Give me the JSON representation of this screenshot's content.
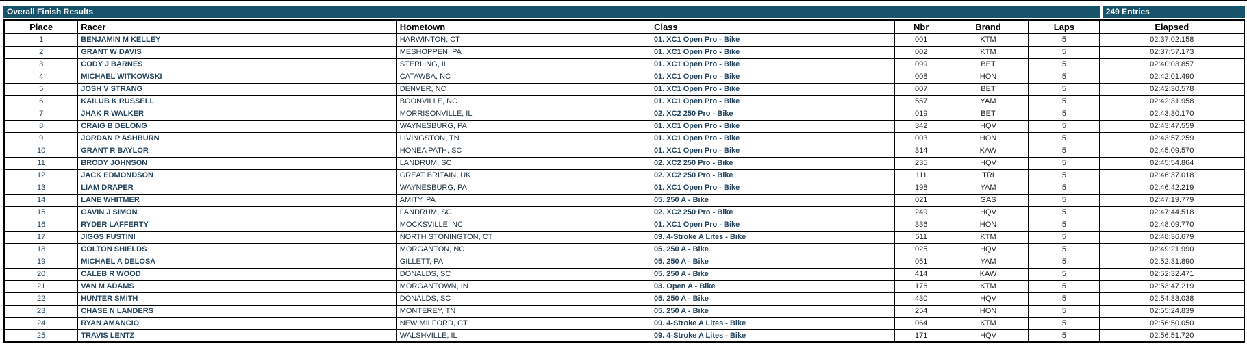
{
  "header": {
    "title": "Overall Finish Results",
    "entries": "249 Entries"
  },
  "colors": {
    "header_bg": "#17536B",
    "header_text": "#FFFFFF",
    "name_text": "#24435C",
    "body_text": "#222222",
    "border": "#000000"
  },
  "columns": [
    {
      "key": "place",
      "label": "Place"
    },
    {
      "key": "racer",
      "label": "Racer"
    },
    {
      "key": "hometown",
      "label": "Hometown"
    },
    {
      "key": "class",
      "label": "Class"
    },
    {
      "key": "nbr",
      "label": "Nbr"
    },
    {
      "key": "brand",
      "label": "Brand"
    },
    {
      "key": "laps",
      "label": "Laps"
    },
    {
      "key": "elapsed",
      "label": "Elapsed"
    }
  ],
  "rows": [
    {
      "place": "1",
      "racer": "BENJAMIN M KELLEY",
      "hometown": "HARWINTON, CT",
      "class": "01. XC1 Open Pro - Bike",
      "nbr": "001",
      "brand": "KTM",
      "laps": "5",
      "elapsed": "02:37:02.158"
    },
    {
      "place": "2",
      "racer": "GRANT W DAVIS",
      "hometown": "MESHOPPEN, PA",
      "class": "01. XC1 Open Pro - Bike",
      "nbr": "002",
      "brand": "KTM",
      "laps": "5",
      "elapsed": "02:37:57.173"
    },
    {
      "place": "3",
      "racer": "CODY J BARNES",
      "hometown": "STERLING, IL",
      "class": "01. XC1 Open Pro - Bike",
      "nbr": "099",
      "brand": "BET",
      "laps": "5",
      "elapsed": "02:40:03.857"
    },
    {
      "place": "4",
      "racer": "MICHAEL WITKOWSKI",
      "hometown": "CATAWBA, NC",
      "class": "01. XC1 Open Pro - Bike",
      "nbr": "008",
      "brand": "HON",
      "laps": "5",
      "elapsed": "02:42:01.490"
    },
    {
      "place": "5",
      "racer": "JOSH V STRANG",
      "hometown": "DENVER, NC",
      "class": "01. XC1 Open Pro - Bike",
      "nbr": "007",
      "brand": "BET",
      "laps": "5",
      "elapsed": "02:42:30.578"
    },
    {
      "place": "6",
      "racer": "KAILUB K RUSSELL",
      "hometown": "BOONVILLE, NC",
      "class": "01. XC1 Open Pro - Bike",
      "nbr": "557",
      "brand": "YAM",
      "laps": "5",
      "elapsed": "02:42:31.958"
    },
    {
      "place": "7",
      "racer": "JHAK R WALKER",
      "hometown": "MORRISONVILLE, IL",
      "class": "02. XC2 250 Pro - Bike",
      "nbr": "019",
      "brand": "BET",
      "laps": "5",
      "elapsed": "02:43:30.170"
    },
    {
      "place": "8",
      "racer": "CRAIG B DELONG",
      "hometown": "WAYNESBURG, PA",
      "class": "01. XC1 Open Pro - Bike",
      "nbr": "342",
      "brand": "HQV",
      "laps": "5",
      "elapsed": "02:43:47.559"
    },
    {
      "place": "9",
      "racer": "JORDAN P ASHBURN",
      "hometown": "LIVINGSTON, TN",
      "class": "01. XC1 Open Pro - Bike",
      "nbr": "003",
      "brand": "HON",
      "laps": "5",
      "elapsed": "02:43:57.259"
    },
    {
      "place": "10",
      "racer": "GRANT R BAYLOR",
      "hometown": "HONEA PATH, SC",
      "class": "01. XC1 Open Pro - Bike",
      "nbr": "314",
      "brand": "KAW",
      "laps": "5",
      "elapsed": "02:45:09.570"
    },
    {
      "place": "11",
      "racer": "BRODY JOHNSON",
      "hometown": "LANDRUM, SC",
      "class": "02. XC2 250 Pro - Bike",
      "nbr": "235",
      "brand": "HQV",
      "laps": "5",
      "elapsed": "02:45:54.864"
    },
    {
      "place": "12",
      "racer": "JACK EDMONDSON",
      "hometown": "GREAT BRITAIN, UK",
      "class": "02. XC2 250 Pro - Bike",
      "nbr": "111",
      "brand": "TRI",
      "laps": "5",
      "elapsed": "02:46:37.018"
    },
    {
      "place": "13",
      "racer": "LIAM DRAPER",
      "hometown": "WAYNESBURG, PA",
      "class": "01. XC1 Open Pro - Bike",
      "nbr": "198",
      "brand": "YAM",
      "laps": "5",
      "elapsed": "02:46:42.219"
    },
    {
      "place": "14",
      "racer": "LANE WHITMER",
      "hometown": "AMITY, PA",
      "class": "05. 250 A - Bike",
      "nbr": "021",
      "brand": "GAS",
      "laps": "5",
      "elapsed": "02:47:19.779"
    },
    {
      "place": "15",
      "racer": "GAVIN J SIMON",
      "hometown": "LANDRUM, SC",
      "class": "02. XC2 250 Pro - Bike",
      "nbr": "249",
      "brand": "HQV",
      "laps": "5",
      "elapsed": "02:47:44.518"
    },
    {
      "place": "16",
      "racer": "RYDER LAFFERTY",
      "hometown": "MOCKSVILLE, NC",
      "class": "01. XC1 Open Pro - Bike",
      "nbr": "336",
      "brand": "HON",
      "laps": "5",
      "elapsed": "02:48:09.770"
    },
    {
      "place": "17",
      "racer": "JIGGS FUSTINI",
      "hometown": "NORTH STONINGTON, CT",
      "class": "09. 4-Stroke A Lites - Bike",
      "nbr": "511",
      "brand": "KTM",
      "laps": "5",
      "elapsed": "02:48:36.679"
    },
    {
      "place": "18",
      "racer": "COLTON SHIELDS",
      "hometown": "MORGANTON, NC",
      "class": "05. 250 A - Bike",
      "nbr": "025",
      "brand": "HQV",
      "laps": "5",
      "elapsed": "02:49:21.990"
    },
    {
      "place": "19",
      "racer": "MICHAEL A DELOSA",
      "hometown": "GILLETT, PA",
      "class": "05. 250 A - Bike",
      "nbr": "051",
      "brand": "YAM",
      "laps": "5",
      "elapsed": "02:52:31.890"
    },
    {
      "place": "20",
      "racer": "CALEB R WOOD",
      "hometown": "DONALDS, SC",
      "class": "05. 250 A - Bike",
      "nbr": "414",
      "brand": "KAW",
      "laps": "5",
      "elapsed": "02:52:32.471"
    },
    {
      "place": "21",
      "racer": "VAN M ADAMS",
      "hometown": "MORGANTOWN, IN",
      "class": "03. Open A - Bike",
      "nbr": "176",
      "brand": "KTM",
      "laps": "5",
      "elapsed": "02:53:47.219"
    },
    {
      "place": "22",
      "racer": "HUNTER SMITH",
      "hometown": "DONALDS, SC",
      "class": "05. 250 A - Bike",
      "nbr": "430",
      "brand": "HQV",
      "laps": "5",
      "elapsed": "02:54:33.038"
    },
    {
      "place": "23",
      "racer": "CHASE N LANDERS",
      "hometown": "MONTEREY, TN",
      "class": "05. 250 A - Bike",
      "nbr": "254",
      "brand": "HON",
      "laps": "5",
      "elapsed": "02:55:24.839"
    },
    {
      "place": "24",
      "racer": "RYAN AMANCIO",
      "hometown": "NEW MILFORD, CT",
      "class": "09. 4-Stroke A Lites - Bike",
      "nbr": "064",
      "brand": "KTM",
      "laps": "5",
      "elapsed": "02:56:50.050"
    },
    {
      "place": "25",
      "racer": "TRAVIS LENTZ",
      "hometown": "WALSHVILLE, IL",
      "class": "09. 4-Stroke A Lites - Bike",
      "nbr": "171",
      "brand": "HQV",
      "laps": "5",
      "elapsed": "02:56:51.720"
    }
  ]
}
